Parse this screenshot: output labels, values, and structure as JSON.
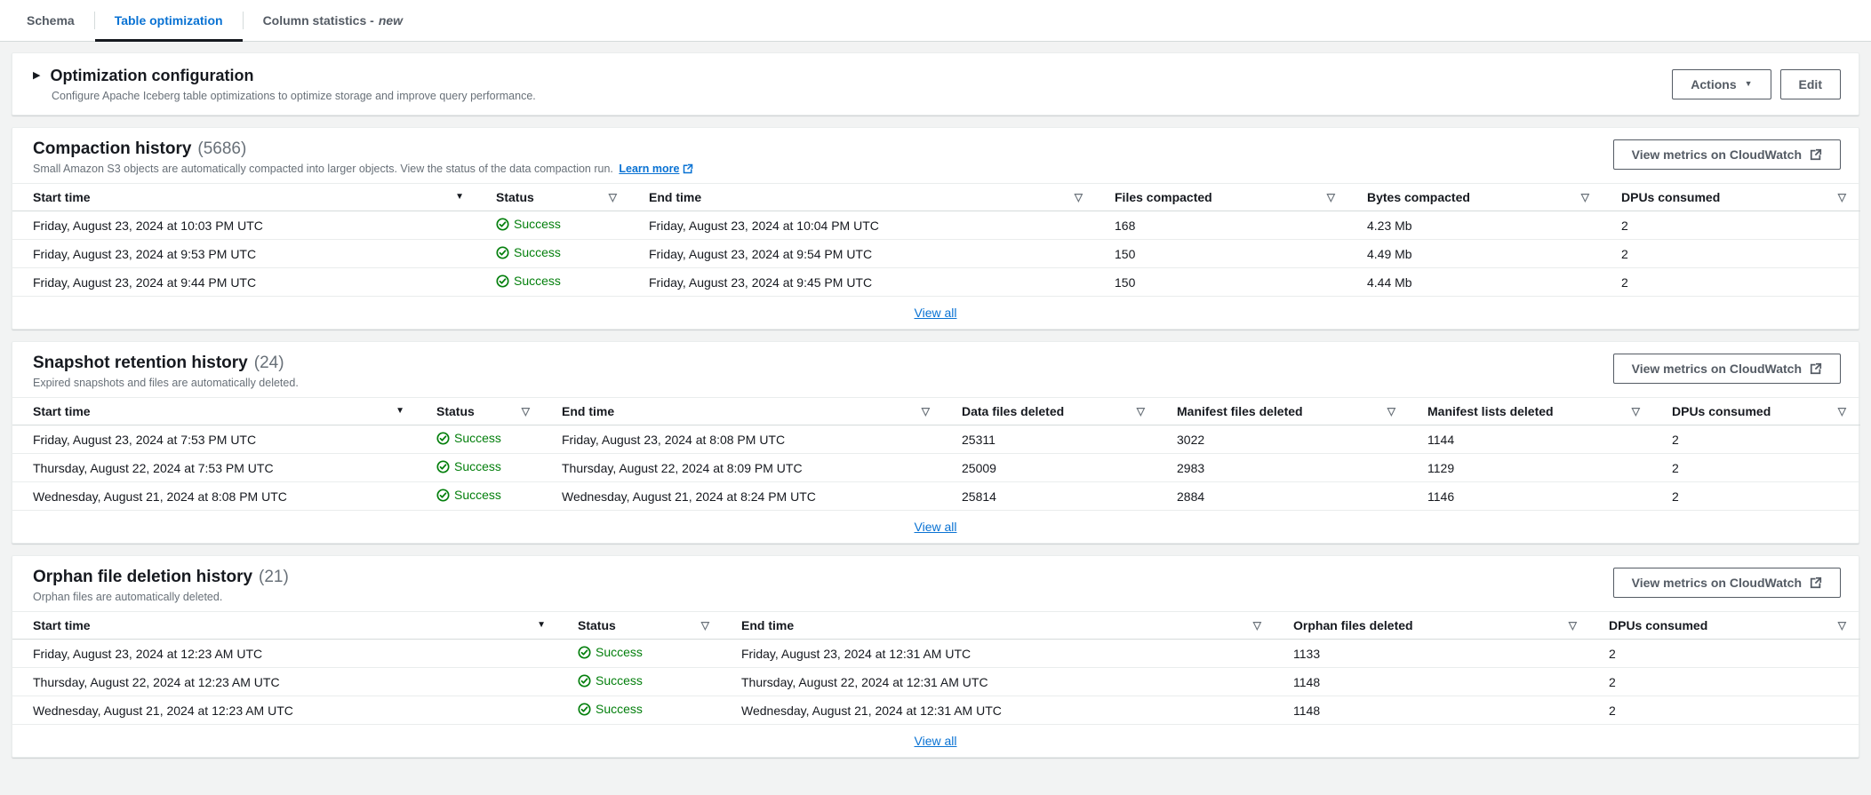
{
  "tabs": [
    {
      "label": "Schema",
      "active": false
    },
    {
      "label": "Table optimization",
      "active": true
    },
    {
      "label": "Column statistics -",
      "suffix": "new",
      "active": false
    }
  ],
  "config": {
    "title": "Optimization configuration",
    "description": "Configure Apache Iceberg table optimizations to optimize storage and improve query performance.",
    "actions_label": "Actions",
    "edit_label": "Edit"
  },
  "sections": [
    {
      "id": "compaction",
      "title": "Compaction history",
      "count_display": "(5686)",
      "description": "Small Amazon S3 objects are automatically compacted into larger objects. View the status of the data compaction run.",
      "learn_more_label": "Learn more",
      "metrics_button_label": "View metrics on CloudWatch",
      "view_all_label": "View all",
      "columns": [
        "Start time",
        "Status",
        "End time",
        "Files compacted",
        "Bytes compacted",
        "DPUs consumed"
      ],
      "rows": [
        [
          "Friday, August 23, 2024 at 10:03 PM UTC",
          "Success",
          "Friday, August 23, 2024 at 10:04 PM UTC",
          "168",
          "4.23 Mb",
          "2"
        ],
        [
          "Friday, August 23, 2024 at 9:53 PM UTC",
          "Success",
          "Friday, August 23, 2024 at 9:54 PM UTC",
          "150",
          "4.49 Mb",
          "2"
        ],
        [
          "Friday, August 23, 2024 at 9:44 PM UTC",
          "Success",
          "Friday, August 23, 2024 at 9:45 PM UTC",
          "150",
          "4.44 Mb",
          "2"
        ]
      ]
    },
    {
      "id": "snapshot",
      "title": "Snapshot retention history",
      "count_display": "(24)",
      "description": "Expired snapshots and files are automatically deleted.",
      "learn_more_label": null,
      "metrics_button_label": "View metrics on CloudWatch",
      "view_all_label": "View all",
      "columns": [
        "Start time",
        "Status",
        "End time",
        "Data files deleted",
        "Manifest files deleted",
        "Manifest lists deleted",
        "DPUs consumed"
      ],
      "rows": [
        [
          "Friday, August 23, 2024 at 7:53 PM UTC",
          "Success",
          "Friday, August 23, 2024 at 8:08 PM UTC",
          "25311",
          "3022",
          "1144",
          "2"
        ],
        [
          "Thursday, August 22, 2024 at 7:53 PM UTC",
          "Success",
          "Thursday, August 22, 2024 at 8:09 PM UTC",
          "25009",
          "2983",
          "1129",
          "2"
        ],
        [
          "Wednesday, August 21, 2024 at 8:08 PM UTC",
          "Success",
          "Wednesday, August 21, 2024 at 8:24 PM UTC",
          "25814",
          "2884",
          "1146",
          "2"
        ]
      ]
    },
    {
      "id": "orphan",
      "title": "Orphan file deletion history",
      "count_display": "(21)",
      "description": "Orphan files are automatically deleted.",
      "learn_more_label": null,
      "metrics_button_label": "View metrics on CloudWatch",
      "view_all_label": "View all",
      "columns": [
        "Start time",
        "Status",
        "End time",
        "Orphan files deleted",
        "DPUs consumed"
      ],
      "rows": [
        [
          "Friday, August 23, 2024 at 12:23 AM UTC",
          "Success",
          "Friday, August 23, 2024 at 12:31 AM UTC",
          "1133",
          "2"
        ],
        [
          "Thursday, August 22, 2024 at 12:23 AM UTC",
          "Success",
          "Thursday, August 22, 2024 at 12:31 AM UTC",
          "1148",
          "2"
        ],
        [
          "Wednesday, August 21, 2024 at 12:23 AM UTC",
          "Success",
          "Wednesday, August 21, 2024 at 12:31 AM UTC",
          "1148",
          "2"
        ]
      ]
    }
  ],
  "colors": {
    "accent_blue": "#0972d3",
    "success_green": "#037f0c",
    "text": "#16191f",
    "secondary_text": "#687078",
    "border": "#eaeded",
    "header_border": "#d5dbdb",
    "page_bg": "#f2f3f3",
    "panel_bg": "#ffffff",
    "button": "#545b64",
    "tab_underline": "#16191f"
  }
}
